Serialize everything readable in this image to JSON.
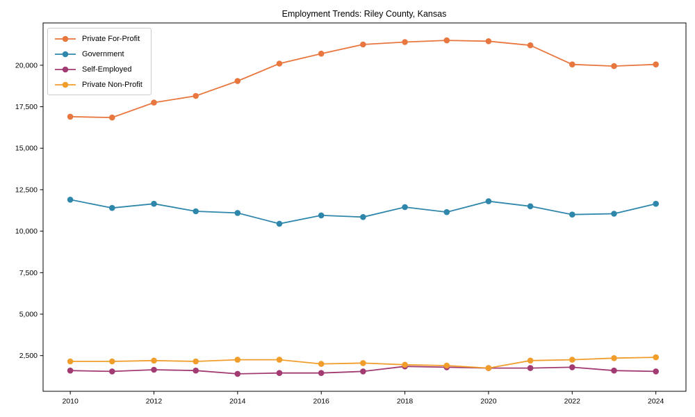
{
  "chart_data": {
    "type": "line",
    "title": "Employment Trends: Riley County, Kansas",
    "x": [
      2010,
      2011,
      2012,
      2013,
      2014,
      2015,
      2016,
      2017,
      2018,
      2019,
      2020,
      2021,
      2022,
      2023,
      2024
    ],
    "series": [
      {
        "name": "Private For-Profit",
        "color": "#e8763f",
        "values": [
          16900,
          16850,
          17750,
          18150,
          19050,
          20100,
          20700,
          21250,
          21400,
          21500,
          21450,
          21200,
          20050,
          19950,
          20050
        ]
      },
      {
        "name": "Government",
        "color": "#2e86ab",
        "values": [
          11900,
          11400,
          11650,
          11200,
          11100,
          10450,
          10950,
          10850,
          11450,
          11150,
          11800,
          11500,
          11000,
          11050,
          11650
        ]
      },
      {
        "name": "Self-Employed",
        "color": "#a23b72",
        "values": [
          1600,
          1550,
          1650,
          1600,
          1400,
          1450,
          1450,
          1550,
          1850,
          1800,
          1750,
          1750,
          1800,
          1600,
          1550
        ]
      },
      {
        "name": "Private Non-Profit",
        "color": "#f09d2c",
        "values": [
          2150,
          2150,
          2200,
          2150,
          2250,
          2250,
          2000,
          2050,
          1950,
          1900,
          1750,
          2200,
          2250,
          2350,
          2400
        ]
      }
    ],
    "xlabel": "",
    "ylabel": "",
    "x_ticks": [
      2010,
      2012,
      2014,
      2016,
      2018,
      2020,
      2022,
      2024
    ],
    "y_ticks": [
      2500,
      5000,
      7500,
      10000,
      12500,
      15000,
      17500,
      20000
    ],
    "y_tick_format": "comma",
    "xlim": [
      2009.35,
      2024.72
    ],
    "ylim": [
      350,
      22550
    ],
    "grid": false,
    "legend_position": "upper-left",
    "axis_color": "#000000",
    "tick_label_color": "#000000"
  }
}
